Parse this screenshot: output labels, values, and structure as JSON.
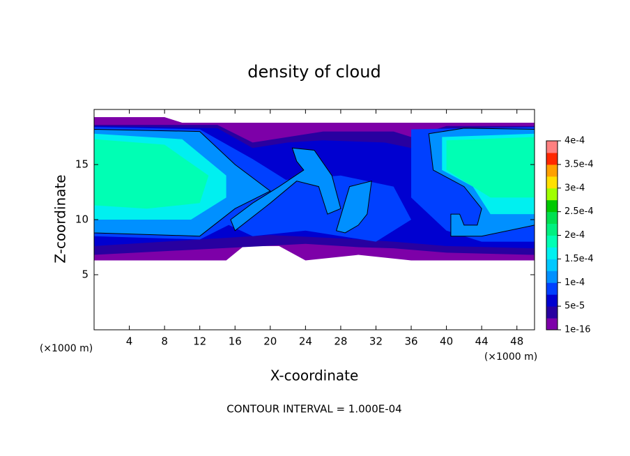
{
  "chart_data": {
    "type": "contour",
    "title": "density of cloud",
    "x_label": "X-coordinate",
    "y_label": "Z-coordinate",
    "x_unit": "(×1000 m)",
    "y_unit": "(×1000 m)",
    "annotation": "CONTOUR INTERVAL = 1.000E-04",
    "xlim": [
      0,
      50
    ],
    "ylim": [
      0,
      20
    ],
    "xticks": [
      4,
      8,
      12,
      16,
      20,
      24,
      28,
      32,
      36,
      40,
      44,
      48
    ],
    "yticks": [
      5,
      10,
      15
    ],
    "levels": [
      {
        "value": 1e-16,
        "label": "1e-16"
      },
      {
        "value": 5e-05,
        "label": "5e-5"
      },
      {
        "value": 0.0001,
        "label": "1e-4"
      },
      {
        "value": 0.00015,
        "label": "1.5e-4"
      },
      {
        "value": 0.0002,
        "label": "2e-4"
      },
      {
        "value": 0.00025,
        "label": "2.5e-4"
      },
      {
        "value": 0.0003,
        "label": "3e-4"
      },
      {
        "value": 0.00035,
        "label": "3.5e-4"
      },
      {
        "value": 0.0004,
        "label": "4e-4"
      }
    ],
    "colors": [
      "#7d00a8",
      "#2800a0",
      "#0000d0",
      "#0040ff",
      "#0090ff",
      "#00c8ff",
      "#00f0f0",
      "#00ffb4",
      "#00f080",
      "#00e050",
      "#00c800",
      "#a0ff00",
      "#ffe000",
      "#ffa000",
      "#ff2800",
      "#ff8080"
    ],
    "regions": [
      {
        "value": 1e-16,
        "x": [
          0,
          8,
          10,
          50,
          50,
          36,
          30,
          24,
          21,
          17,
          15,
          0
        ],
        "z": [
          19.3,
          19.3,
          18.8,
          18.8,
          6.3,
          6.3,
          6.8,
          6.3,
          7.6,
          7.6,
          6.3,
          6.3
        ]
      },
      {
        "value": 2.5e-05,
        "x": [
          0,
          14,
          18,
          22,
          26,
          34,
          36,
          40,
          50,
          50,
          40,
          34,
          30,
          24,
          0
        ],
        "z": [
          18.6,
          18.6,
          17,
          17.5,
          18,
          18,
          17.5,
          18.5,
          18.5,
          6.8,
          7,
          7.4,
          7.5,
          7.8,
          6.8
        ]
      },
      {
        "value": 5e-05,
        "x": [
          0,
          14,
          18,
          22,
          26,
          33,
          36,
          40,
          50,
          50,
          40,
          34,
          28,
          20,
          0
        ],
        "z": [
          18.5,
          18.3,
          16.5,
          17,
          17.2,
          17,
          16.5,
          18.3,
          18.4,
          7.4,
          7.6,
          8,
          8.3,
          8.6,
          7.6
        ]
      },
      {
        "value": 7.5e-05,
        "x": [
          0,
          12,
          18,
          22,
          19,
          14,
          12,
          0
        ],
        "z": [
          18.4,
          18.2,
          15.5,
          13.5,
          11,
          9,
          8.2,
          8.5
        ]
      },
      {
        "value": 7.5e-05,
        "x": [
          36,
          50,
          50,
          44,
          40,
          36
        ],
        "z": [
          18.2,
          18.4,
          8,
          8,
          9,
          12
        ]
      },
      {
        "value": 7.5e-05,
        "x": [
          14,
          20,
          28,
          34,
          36,
          32,
          24,
          18
        ],
        "z": [
          10,
          13.5,
          14,
          13,
          10,
          8,
          9,
          8.5
        ]
      },
      {
        "value": 0.0001,
        "x": [
          0,
          12,
          16,
          20,
          16,
          12,
          0
        ],
        "z": [
          18.2,
          18,
          15,
          12.6,
          11,
          8.5,
          8.8
        ]
      },
      {
        "value": 0.0001,
        "x": [
          38,
          42,
          50,
          50,
          44,
          40.5,
          40.5,
          41.5,
          42,
          43.5,
          44,
          42,
          38.5
        ],
        "z": [
          17.8,
          18.3,
          18.2,
          9.5,
          8.5,
          8.5,
          10.5,
          10.5,
          9.5,
          9.5,
          11,
          13,
          14.5
        ]
      },
      {
        "value": 0.0001,
        "x": [
          22.5,
          25,
          27,
          28,
          26.5,
          25.5,
          23,
          20,
          16,
          15.5,
          18,
          21,
          23.8,
          23
        ],
        "z": [
          16.5,
          16.3,
          14,
          11,
          10.5,
          13,
          13.5,
          11.5,
          9,
          10,
          11.5,
          13,
          14.5,
          15.3
        ]
      },
      {
        "value": 0.0001,
        "x": [
          27.5,
          29,
          31.5,
          31,
          30,
          28.5
        ],
        "z": [
          9,
          13,
          13.5,
          10.5,
          9.5,
          8.8
        ]
      },
      {
        "value": 0.00015,
        "x": [
          0,
          10,
          15,
          15,
          11,
          0
        ],
        "z": [
          17.8,
          17.3,
          14,
          12,
          10,
          10
        ]
      },
      {
        "value": 0.00015,
        "x": [
          39.5,
          50,
          50,
          45,
          43,
          39.5
        ],
        "z": [
          17.5,
          17.8,
          10.5,
          10.5,
          13,
          14.5
        ]
      },
      {
        "value": 0.000175,
        "x": [
          0,
          8,
          13,
          12,
          6,
          0
        ],
        "z": [
          17.3,
          16.8,
          14,
          11.5,
          11,
          11.3
        ]
      },
      {
        "value": 0.000175,
        "x": [
          40,
          50,
          50,
          45,
          40
        ],
        "z": [
          17.2,
          17.5,
          12,
          12,
          14.5
        ]
      }
    ]
  }
}
